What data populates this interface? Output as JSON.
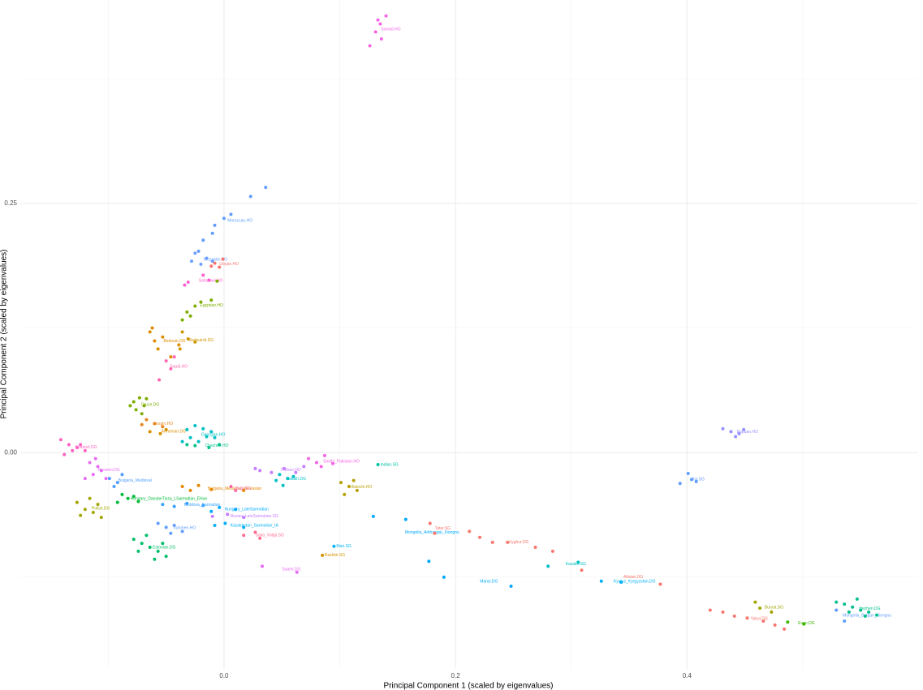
{
  "chart_data": {
    "type": "scatter",
    "x_label": "Principal Component 1 (scaled by eigenvalues)",
    "y_label": "Principal Component 2 (scaled by eigenvalues)",
    "xlim": [
      -0.176,
      0.599
    ],
    "ylim": [
      -0.217,
      0.454
    ],
    "xticks": [
      {
        "value": 0,
        "label": "0.0"
      },
      0.2,
      0.4
    ],
    "yticks": [
      {
        "value": 0,
        "label": "0.00"
      },
      0.25
    ],
    "xgrid_minor": [
      -0.1,
      0.1,
      0.3,
      0.5
    ],
    "ygrid_minor": [
      -0.125,
      0.125,
      0.375
    ],
    "grid": true,
    "series": [
      {
        "name": "Somali.HO",
        "color": "#f564e3",
        "x": [
          0.126,
          0.131,
          0.135,
          0.14,
          0.136,
          0.133
        ],
        "y": [
          0.408,
          0.422,
          0.43,
          0.438,
          0.415,
          0.434
        ]
      },
      {
        "name": "Moroccan.HO",
        "color": "#619cff",
        "x": [
          0.036,
          0.023,
          0.006,
          0.0,
          -0.008,
          -0.01,
          -0.018,
          -0.022
        ],
        "y": [
          0.266,
          0.257,
          0.239,
          0.235,
          0.228,
          0.22,
          0.213,
          0.202
        ]
      },
      {
        "name": "Mozabite.HO",
        "color": "#6f9fff",
        "x": [
          -0.025,
          -0.015,
          -0.02,
          -0.01,
          -0.028
        ],
        "y": [
          0.2,
          0.195,
          0.189,
          0.192,
          0.192
        ]
      },
      {
        "name": "Libyan.HO",
        "color": "#f8766d",
        "x": [
          -0.008,
          -0.004,
          -0.011,
          -0.001
        ],
        "y": [
          0.19,
          0.186,
          0.187,
          0.194
        ]
      },
      {
        "name": "Saharawi.HO",
        "color": "#fd61d1",
        "x": [
          -0.018,
          -0.031,
          -0.034,
          -0.013
        ],
        "y": [
          0.178,
          0.171,
          0.168,
          0.173
        ]
      },
      {
        "name": "Egyptian.HO",
        "color": "#7cae00",
        "x": [
          -0.025,
          -0.032,
          -0.02,
          -0.036,
          -0.011,
          -0.006,
          -0.029
        ],
        "y": [
          0.147,
          0.141,
          0.151,
          0.133,
          0.153,
          0.172,
          0.137
        ]
      },
      {
        "name": "Bedouin.DG",
        "color": "#de8c00",
        "x": [
          -0.064,
          -0.06,
          -0.057,
          -0.053,
          -0.046,
          -0.039,
          -0.062
        ],
        "y": [
          0.121,
          0.112,
          0.104,
          0.116,
          0.096,
          0.108,
          0.125
        ]
      },
      {
        "name": "BedouinA.DG",
        "color": "#cd9600",
        "x": [
          -0.036,
          -0.031,
          -0.025,
          -0.038
        ],
        "y": [
          0.121,
          0.114,
          0.111,
          0.104
        ]
      },
      {
        "name": "Saudi.HO",
        "color": "#ff64b0",
        "x": [
          -0.05,
          -0.046,
          -0.043,
          -0.056
        ],
        "y": [
          0.092,
          0.084,
          0.096,
          0.073
        ]
      },
      {
        "name": "Druze.DG",
        "color": "#7cae00",
        "x": [
          -0.078,
          -0.073,
          -0.069,
          -0.076,
          -0.071,
          -0.081,
          -0.067
        ],
        "y": [
          0.051,
          0.055,
          0.047,
          0.043,
          0.039,
          0.047,
          0.054
        ]
      },
      {
        "name": "Lezgin.HO",
        "color": "#e7861b",
        "x": [
          -0.067,
          -0.06,
          -0.053,
          -0.071
        ],
        "y": [
          0.033,
          0.029,
          0.026,
          0.028
        ]
      },
      {
        "name": "Armenian.DG",
        "color": "#d89000",
        "x": [
          -0.064,
          -0.055,
          -0.05
        ],
        "y": [
          0.021,
          0.019,
          0.023
        ]
      },
      {
        "name": "Georgian.HO",
        "color": "#00bfc4",
        "x": [
          -0.032,
          -0.025,
          -0.018,
          -0.011,
          -0.029,
          -0.022,
          -0.015,
          -0.036,
          -0.008
        ],
        "y": [
          0.023,
          0.027,
          0.024,
          0.021,
          0.015,
          0.011,
          0.016,
          0.011,
          0.015
        ]
      },
      {
        "name": "Chechen.HO",
        "color": "#00c08b",
        "x": [
          -0.025,
          -0.032,
          -0.013,
          -0.004
        ],
        "y": [
          0.007,
          0.008,
          0.005,
          0.008
        ]
      },
      {
        "name": "Spanish.DG",
        "color": "#ff61c3",
        "x": [
          -0.141,
          -0.134,
          -0.127,
          -0.131,
          -0.138,
          -0.124,
          -0.12
        ],
        "y": [
          0.013,
          0.008,
          0.005,
          0.002,
          -0.002,
          0.008,
          0.002
        ]
      },
      {
        "name": "Russian.DG",
        "color": "#e76bf3",
        "x": [
          -0.116,
          -0.109,
          -0.113,
          -0.106,
          -0.12,
          -0.102,
          -0.111
        ],
        "y": [
          -0.01,
          -0.014,
          -0.022,
          -0.018,
          -0.026,
          -0.026,
          -0.006
        ]
      },
      {
        "name": "Bulgaria_Medieval",
        "color": "#529efe",
        "x": [
          -0.099,
          -0.092,
          -0.095,
          -0.088
        ],
        "y": [
          -0.026,
          -0.03,
          -0.034,
          -0.022
        ]
      },
      {
        "name": "Hungary_DanubeTisza_LSarmatian_EHun",
        "color": "#00ba38",
        "x": [
          -0.088,
          -0.083,
          -0.078,
          -0.074,
          -0.092
        ],
        "y": [
          -0.042,
          -0.046,
          -0.044,
          -0.049,
          -0.05
        ]
      },
      {
        "name": "Bulgaria_Medieval_eEurasian",
        "color": "#e58700",
        "x": [
          -0.036,
          -0.029,
          -0.022,
          -0.011,
          0.017
        ],
        "y": [
          -0.034,
          -0.038,
          -0.033,
          -0.037,
          -0.038
        ]
      },
      {
        "name": "Moldova_Sarmatian",
        "color": "#35a2ff",
        "x": [
          -0.053,
          -0.043,
          -0.032,
          -0.018
        ],
        "y": [
          -0.052,
          -0.054,
          -0.051,
          -0.053
        ]
      },
      {
        "name": "Hungary_LateSarmatian",
        "color": "#00a9ff",
        "x": [
          -0.004,
          0.01,
          -0.011
        ],
        "y": [
          -0.055,
          -0.057,
          -0.059
        ]
      },
      {
        "name": "Russia_LateSarmatian.SG",
        "color": "#c77cff",
        "x": [
          -0.01,
          0.003,
          0.017
        ],
        "y": [
          -0.064,
          -0.062,
          -0.065
        ]
      },
      {
        "name": "Kazakhstan_Sarmatian_IA",
        "color": "#00b0f6",
        "x": [
          0.001,
          -0.008,
          0.017
        ],
        "y": [
          -0.071,
          -0.073,
          -0.075
        ]
      },
      {
        "name": "Saka_Volga.SG",
        "color": "#ff6c91",
        "x": [
          0.017,
          0.027,
          0.031
        ],
        "y": [
          -0.083,
          -0.08,
          -0.086
        ]
      },
      {
        "name": "Estonian.DG",
        "color": "#00be67",
        "x": [
          -0.078,
          -0.071,
          -0.064,
          -0.057,
          -0.05,
          -0.074,
          -0.06,
          -0.053,
          -0.067
        ],
        "y": [
          -0.087,
          -0.091,
          -0.095,
          -0.099,
          -0.104,
          -0.099,
          -0.107,
          -0.091,
          -0.083
        ]
      },
      {
        "name": "Polish.DG",
        "color": "#a3a500",
        "x": [
          -0.127,
          -0.12,
          -0.113,
          -0.124,
          -0.109,
          -0.116,
          -0.106
        ],
        "y": [
          -0.05,
          -0.057,
          -0.06,
          -0.063,
          -0.052,
          -0.046,
          -0.065
        ]
      },
      {
        "name": "Turkmen.HO",
        "color": "#619cff",
        "x": [
          -0.057,
          -0.05,
          -0.043,
          -0.036,
          -0.046
        ],
        "y": [
          -0.071,
          -0.075,
          -0.073,
          -0.079,
          -0.081
        ]
      },
      {
        "name": "Pathan.HO",
        "color": "#c77cff",
        "x": [
          0.031,
          0.041,
          0.052,
          0.062,
          0.069,
          0.027
        ],
        "y": [
          -0.018,
          -0.02,
          -0.016,
          -0.02,
          -0.014,
          -0.016
        ]
      },
      {
        "name": "Kalash.DG",
        "color": "#00bfc4",
        "x": [
          0.045,
          0.051,
          0.055,
          0.048,
          0.06
        ],
        "y": [
          -0.028,
          -0.033,
          -0.026,
          -0.022,
          -0.024
        ]
      },
      {
        "name": "Sindhi_Pakistan.HO",
        "color": "#f564e3",
        "x": [
          0.073,
          0.08,
          0.087,
          0.084,
          0.094
        ],
        "y": [
          -0.006,
          -0.01,
          -0.003,
          -0.014,
          -0.011
        ]
      },
      {
        "name": "Balochi.HO",
        "color": "#b79f00",
        "x": [
          0.101,
          0.108,
          0.115,
          0.104,
          0.112
        ],
        "y": [
          -0.03,
          -0.034,
          -0.038,
          -0.042,
          -0.028
        ]
      },
      {
        "name": "Indian.SG",
        "color": "#00c1a3",
        "x": [
          0.133
        ],
        "y": [
          -0.012
        ]
      },
      {
        "name": "Tajik.DG",
        "color": "#ff67a4",
        "x": [
          0.006,
          0.01
        ],
        "y": [
          -0.034,
          -0.038
        ]
      },
      {
        "name": "Mongolia_Arkhangai_Xiongnu",
        "color": "#00a9ff",
        "x": [
          0.129,
          0.157,
          0.177
        ],
        "y": [
          -0.064,
          -0.067,
          -0.109
        ]
      },
      {
        "name": "Mari.SG",
        "color": "#00b4f0",
        "x": [
          0.095
        ],
        "y": [
          -0.094
        ]
      },
      {
        "name": "Bashkir.SG",
        "color": "#d39200",
        "x": [
          0.085
        ],
        "y": [
          -0.103
        ]
      },
      {
        "name": "Saami.DG",
        "color": "#e76bf3",
        "x": [
          0.033,
          0.063
        ],
        "y": [
          -0.114,
          -0.12
        ]
      },
      {
        "name": "Tatar.SG",
        "color": "#f8766d",
        "x": [
          0.178,
          0.182
        ],
        "y": [
          -0.071,
          -0.081
        ]
      },
      {
        "name": "Uyghur.DG",
        "color": "#f8766d",
        "x": [
          0.212,
          0.221,
          0.232,
          0.245,
          0.269,
          0.284
        ],
        "y": [
          -0.079,
          -0.085,
          -0.09,
          -0.09,
          -0.095,
          -0.099
        ]
      },
      {
        "name": "Kazakh.SG",
        "color": "#00bfc4",
        "x": [
          0.28,
          0.306
        ],
        "y": [
          -0.114,
          -0.11
        ]
      },
      {
        "name": "Mansi.DG",
        "color": "#00a9ff",
        "x": [
          0.19,
          0.248
        ],
        "y": [
          -0.125,
          -0.134
        ]
      },
      {
        "name": "Kyrgyz_Kyrgyzstan.DG",
        "color": "#00b0f6",
        "x": [
          0.326,
          0.343
        ],
        "y": [
          -0.129,
          -0.13
        ]
      },
      {
        "name": "Altaian.DG",
        "color": "#f8766d",
        "x": [
          0.377,
          0.309
        ],
        "y": [
          -0.132,
          -0.118
        ]
      },
      {
        "name": "Buryat.SG",
        "color": "#a3a500",
        "x": [
          0.459,
          0.463,
          0.473
        ],
        "y": [
          -0.15,
          -0.156,
          -0.16
        ]
      },
      {
        "name": "Yakut.DG",
        "color": "#f8766d",
        "x": [
          0.42,
          0.431,
          0.441,
          0.452,
          0.466,
          0.476,
          0.484
        ],
        "y": [
          -0.158,
          -0.16,
          -0.164,
          -0.166,
          -0.169,
          -0.173,
          -0.177
        ]
      },
      {
        "name": "Even.DG",
        "color": "#39b600",
        "x": [
          0.487,
          0.501
        ],
        "y": [
          -0.17,
          -0.172
        ]
      },
      {
        "name": "Mongolia_Bulgan_Xiongnu",
        "color": "#619cff",
        "x": [
          0.529,
          0.536
        ],
        "y": [
          -0.158,
          -0.169
        ]
      },
      {
        "name": "Hezhen.DG",
        "color": "#00c08b",
        "x": [
          0.529,
          0.536,
          0.543,
          0.55,
          0.557,
          0.564,
          0.54,
          0.554,
          0.547
        ],
        "y": [
          -0.15,
          -0.152,
          -0.155,
          -0.158,
          -0.16,
          -0.163,
          -0.16,
          -0.164,
          -0.147
        ]
      },
      {
        "name": "Papuan.HO",
        "color": "#9590ff",
        "x": [
          0.431,
          0.438,
          0.442,
          0.445,
          0.449
        ],
        "y": [
          0.024,
          0.021,
          0.016,
          0.019,
          0.023
        ]
      },
      {
        "name": "Dai.SG",
        "color": "#619cff",
        "x": [
          0.394,
          0.401,
          0.404,
          0.408
        ],
        "y": [
          -0.031,
          -0.021,
          -0.027,
          -0.029
        ]
      }
    ]
  }
}
